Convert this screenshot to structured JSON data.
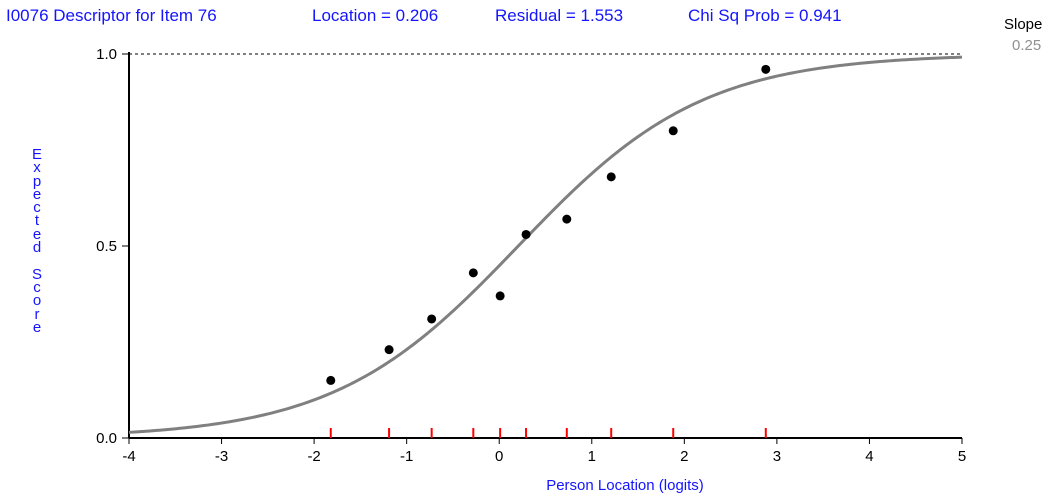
{
  "header": {
    "item": "I0076 Descriptor for Item 76",
    "location": "Location = 0.206",
    "residual": "Residual = 1.553",
    "chisq": "Chi Sq Prob = 0.941"
  },
  "slope": {
    "label": "Slope",
    "value": "0.25"
  },
  "chart_data": {
    "type": "scatter",
    "title": "I0076 Descriptor for Item 76",
    "xlabel": "Person Location (logits)",
    "ylabel": "Expected Score",
    "xlim": [
      -4,
      5
    ],
    "ylim": [
      0,
      1
    ],
    "x_ticks": [
      "-4",
      "-3",
      "-2",
      "-1",
      "0",
      "1",
      "2",
      "3",
      "4",
      "5"
    ],
    "y_ticks": [
      "0.0",
      "0.5",
      "1.0"
    ],
    "curve": {
      "type": "logistic",
      "location": 0.206,
      "discrimination": 1.0
    },
    "points": [
      {
        "x": -1.82,
        "y": 0.15
      },
      {
        "x": -1.19,
        "y": 0.23
      },
      {
        "x": -0.73,
        "y": 0.31
      },
      {
        "x": -0.28,
        "y": 0.43
      },
      {
        "x": 0.01,
        "y": 0.37
      },
      {
        "x": 0.29,
        "y": 0.53
      },
      {
        "x": 0.73,
        "y": 0.57
      },
      {
        "x": 1.21,
        "y": 0.68
      },
      {
        "x": 1.88,
        "y": 0.8
      },
      {
        "x": 2.88,
        "y": 0.96
      }
    ],
    "class_intervals": [
      -1.82,
      -1.19,
      -0.73,
      -0.28,
      0.01,
      0.29,
      0.73,
      1.21,
      1.88,
      2.88
    ],
    "reference_line_y": 1.0,
    "colors": {
      "curve": "#808080",
      "points": "#000000",
      "intervals": "#ff0000",
      "labels": "#1414ff"
    }
  }
}
